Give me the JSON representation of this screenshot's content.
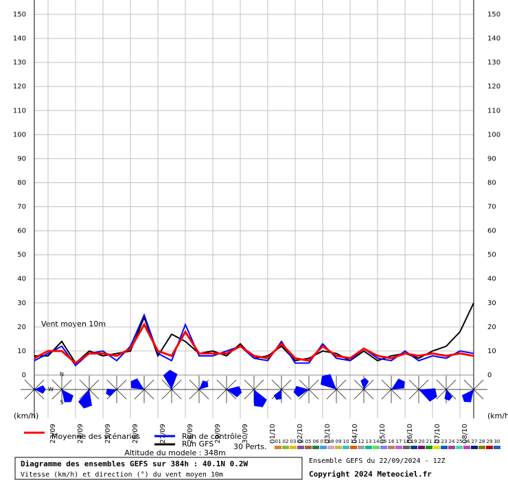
{
  "chart_data": {
    "type": "line",
    "annotation": "Vent moyen 10m",
    "unit_label": "(km/h)",
    "compass": {
      "north": "N",
      "west": "W",
      "south": "S"
    },
    "xlim": [
      0,
      384
    ],
    "xticks": [
      {
        "value": 12,
        "label": "23/09"
      },
      {
        "value": 36,
        "label": "24/09"
      },
      {
        "value": 60,
        "label": "25/09"
      },
      {
        "value": 84,
        "label": "26/09"
      },
      {
        "value": 108,
        "label": "27/09"
      },
      {
        "value": 132,
        "label": "28/09"
      },
      {
        "value": 156,
        "label": "29/09"
      },
      {
        "value": 180,
        "label": "30/09"
      },
      {
        "value": 204,
        "label": "01/10"
      },
      {
        "value": 228,
        "label": "02/10"
      },
      {
        "value": 252,
        "label": "03/10"
      },
      {
        "value": 276,
        "label": "04/10"
      },
      {
        "value": 300,
        "label": "05/10"
      },
      {
        "value": 324,
        "label": "06/10"
      },
      {
        "value": 348,
        "label": "07/10"
      },
      {
        "value": 372,
        "label": "08/10"
      }
    ],
    "ylim": [
      0,
      156
    ],
    "yticks": [
      0,
      10,
      20,
      30,
      40,
      50,
      60,
      70,
      80,
      90,
      100,
      110,
      120,
      130,
      140,
      150
    ],
    "grid": true,
    "x": [
      0,
      12,
      24,
      36,
      48,
      60,
      72,
      84,
      96,
      108,
      120,
      132,
      144,
      156,
      168,
      180,
      192,
      204,
      216,
      228,
      240,
      252,
      264,
      276,
      288,
      300,
      312,
      324,
      336,
      348,
      360,
      372,
      384
    ],
    "series": [
      {
        "name": "Moyenne des scénarios",
        "color": "#ff0000",
        "values": [
          7,
          10,
          10,
          5,
          9,
          9,
          8,
          11,
          21,
          10,
          8,
          18,
          9,
          9,
          9,
          12,
          8,
          7,
          13,
          7,
          6,
          12,
          8,
          7,
          11,
          8,
          7,
          9,
          8,
          9,
          8,
          9,
          8
        ]
      },
      {
        "name": "Run de contrôle",
        "color": "#0000ff",
        "values": [
          6,
          9,
          12,
          4,
          9,
          10,
          6,
          12,
          25,
          9,
          6,
          21,
          8,
          8,
          10,
          12,
          7,
          6,
          14,
          5,
          5,
          13,
          7,
          6,
          11,
          7,
          6,
          10,
          6,
          8,
          7,
          10,
          9
        ]
      },
      {
        "name": "Run GFS",
        "color": "#000000",
        "values": [
          8,
          8,
          14,
          5,
          10,
          8,
          9,
          10,
          24,
          8,
          17,
          14,
          9,
          10,
          8,
          13,
          7,
          8,
          12,
          6,
          7,
          10,
          9,
          6,
          10,
          6,
          8,
          9,
          7,
          10,
          12,
          18,
          30
        ]
      }
    ],
    "perturbations": {
      "label": "30 Perts.",
      "codes": [
        "01",
        "02",
        "03",
        "04",
        "05",
        "06",
        "07",
        "08",
        "09",
        "10",
        "11",
        "12",
        "13",
        "14",
        "15",
        "16",
        "17",
        "18",
        "19",
        "20",
        "21",
        "22",
        "23",
        "24",
        "25",
        "26",
        "27",
        "28",
        "29",
        "30"
      ],
      "colors": [
        "#e08030",
        "#80c040",
        "#e0c000",
        "#8050a0",
        "#a06030",
        "#208040",
        "#40a0e0",
        "#e0a0c0",
        "#c0c040",
        "#40c0c0",
        "#e06000",
        "#a0a0a0",
        "#00c080",
        "#60e060",
        "#8080ff",
        "#c08060",
        "#c060e0",
        "#606060",
        "#004080",
        "#800080",
        "#00a000",
        "#e0e000",
        "#0060c0",
        "#a040a0",
        "#40e0a0",
        "#c040c0",
        "#002080",
        "#808000",
        "#c00000",
        "#2060c0"
      ]
    },
    "altitude": "Altitude du modele : 348m",
    "footer": {
      "title": "Diagramme des ensembles GEFS sur 384h : 40.1N 0.2W",
      "subtitle": "Vitesse (km/h) et direction (°) du vent moyen 10m",
      "run": "Ensemble GEFS du 22/09/2024 - 12Z",
      "copyright": "Copyright 2024 Meteociel.fr"
    }
  }
}
